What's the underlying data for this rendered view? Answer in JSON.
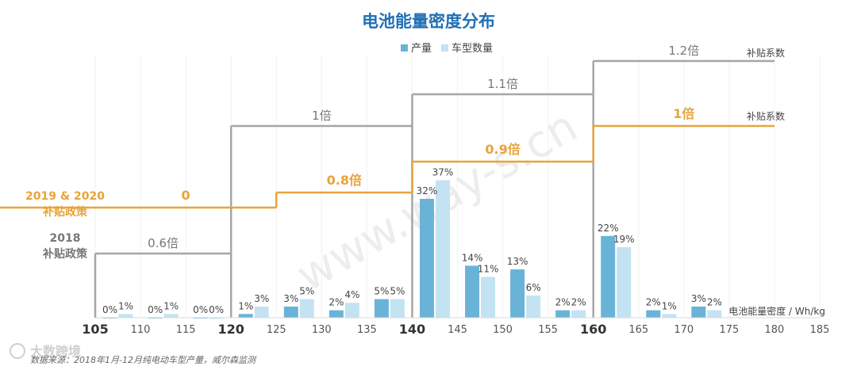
{
  "chart_data": {
    "type": "bar",
    "title": "电池能量密度分布",
    "legend": [
      "产量",
      "车型数量"
    ],
    "legend_position": "top-center",
    "xlabel": "电池能量密度 / Wh/kg",
    "x_ticks": [
      105,
      110,
      115,
      120,
      125,
      130,
      135,
      140,
      145,
      150,
      155,
      160,
      165,
      170,
      175,
      180,
      185
    ],
    "x_major_ticks": [
      105,
      120,
      140,
      160
    ],
    "bars": [
      {
        "x": 107.5,
        "production": 0,
        "models": 1
      },
      {
        "x": 112.5,
        "production": 0,
        "models": 1
      },
      {
        "x": 117.5,
        "production": 0,
        "models": 0
      },
      {
        "x": 122.5,
        "production": 1,
        "models": 3
      },
      {
        "x": 127.5,
        "production": 3,
        "models": 5
      },
      {
        "x": 132.5,
        "production": 2,
        "models": 4
      },
      {
        "x": 137.5,
        "production": 5,
        "models": 5
      },
      {
        "x": 142.5,
        "production": 32,
        "models": 37
      },
      {
        "x": 147.5,
        "production": 14,
        "models": 11
      },
      {
        "x": 152.5,
        "production": 13,
        "models": 6
      },
      {
        "x": 157.5,
        "production": 2,
        "models": 2
      },
      {
        "x": 162.5,
        "production": 22,
        "models": 19
      },
      {
        "x": 167.5,
        "production": 2,
        "models": 1
      },
      {
        "x": 172.5,
        "production": 3,
        "models": 2
      }
    ],
    "series": [
      {
        "name": "产量",
        "color": "#6ab3d8"
      },
      {
        "name": "车型数量",
        "color": "#c3e3f2"
      }
    ],
    "ylim": [
      0,
      45
    ],
    "policy_2018": {
      "label": "2018 补贴政策",
      "color": "#a6a6a6",
      "steps": [
        {
          "from": 105,
          "to": 120,
          "level": 0.6,
          "text": "0.6倍"
        },
        {
          "from": 120,
          "to": 140,
          "level": 1.0,
          "text": "1倍"
        },
        {
          "from": 140,
          "to": 160,
          "level": 1.1,
          "text": "1.1倍"
        },
        {
          "from": 160,
          "to": 180,
          "level": 1.2,
          "text": "1.2倍"
        }
      ],
      "coef_label": "补贴系数"
    },
    "policy_2019_2020": {
      "label": "2019 & 2020 补贴政策",
      "color": "#e8a43a",
      "steps": [
        {
          "from": 105,
          "to": 125,
          "level": 0,
          "text": "0"
        },
        {
          "from": 125,
          "to": 140,
          "level": 0.8,
          "text": "0.8倍"
        },
        {
          "from": 140,
          "to": 160,
          "level": 0.9,
          "text": "0.9倍"
        },
        {
          "from": 160,
          "to": 180,
          "level": 1.0,
          "text": "1倍"
        }
      ],
      "coef_label": "补贴系数"
    }
  },
  "labels": {
    "policy_2019_line1": "2019 & 2020",
    "policy_2019_line2": "补贴政策",
    "policy_2018_line1": "2018",
    "policy_2018_line2": "补贴政策"
  },
  "source": "数据来源：2018年1月-12月纯电动车型产量，威尔森监测",
  "watermark": "www.way-s.cn",
  "logo": "大数跨境",
  "colors": {
    "accent_title": "#1f6fb5",
    "orange": "#e8a43a",
    "gray": "#a6a6a6"
  }
}
